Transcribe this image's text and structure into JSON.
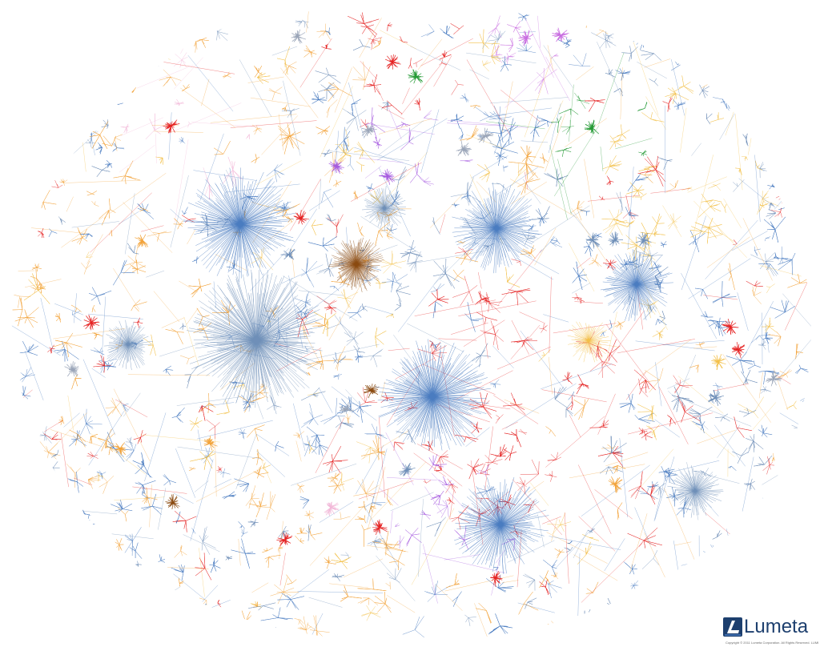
{
  "diagram": {
    "type": "internet-topology-graph",
    "colors": {
      "blue": "#4a7cc0",
      "steel": "#6f8fb8",
      "orange": "#f2a33a",
      "gold": "#f3c04a",
      "red": "#e52222",
      "purple": "#a65be0",
      "magenta": "#c86be0",
      "green": "#229933",
      "brown": "#8a4a10",
      "pink": "#f2b8d8",
      "gray": "#9aa5b8"
    }
  },
  "logo": {
    "text": "Lumeta",
    "mark_icon": "lumeta-l-icon",
    "color": "#1d3f6e"
  },
  "copyright": {
    "text": "Copyright © 2011 Lumeta Corporation. All Rights Reserved. LUMETA U.S.A."
  }
}
